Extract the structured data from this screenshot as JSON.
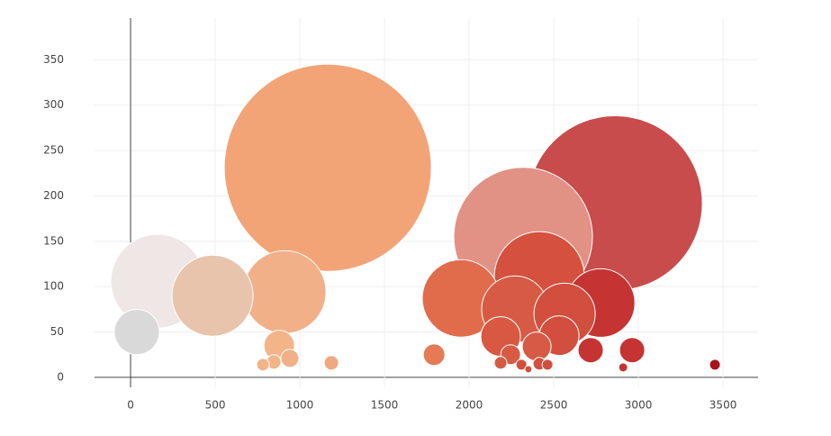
{
  "chart_data": {
    "type": "bubble",
    "x": [
      1165,
      2862,
      2319,
      160,
      2415,
      1952,
      910,
      484,
      2777,
      2271,
      2564,
      37,
      2186,
      2532,
      878,
      2399,
      2718,
      2963,
      1793,
      2245,
      941,
      846,
      1186,
      782,
      2186,
      2415,
      2309,
      2463,
      3452,
      2910,
      2350
    ],
    "y": [
      231,
      192,
      155,
      106,
      111,
      87,
      94,
      90,
      82,
      75,
      70,
      50,
      45,
      46,
      35,
      34,
      30,
      30,
      25,
      25,
      21,
      17,
      16,
      14,
      16,
      15,
      14,
      14,
      14,
      11,
      9
    ],
    "size": [
      115,
      97,
      77,
      52,
      50,
      43,
      46,
      45,
      38,
      37,
      34,
      25,
      22,
      22,
      17,
      16,
      14,
      14,
      12,
      11,
      10,
      8,
      8,
      7,
      7,
      7,
      6,
      6,
      6,
      5,
      4
    ],
    "colors": [
      "#f3a477",
      "#c94c4c",
      "#e29185",
      "#efe7e5",
      "#d5503d",
      "#e06c4c",
      "#f1b088",
      "#e8c4ad",
      "#c53432",
      "#d65a44",
      "#d24e3e",
      "#d9d9d9",
      "#d85842",
      "#d24e3e",
      "#f3b488",
      "#d65a44",
      "#c53432",
      "#c53432",
      "#e57a55",
      "#d65a44",
      "#f1b088",
      "#f3b488",
      "#f1a87e",
      "#f3b488",
      "#d65a44",
      "#d24e3e",
      "#d24e3e",
      "#d24e3e",
      "#a8131e",
      "#c53432",
      "#d24e3e"
    ],
    "xlim": [
      -213,
      3707
    ],
    "ylim": [
      -11,
      396
    ],
    "xticks": [
      0,
      500,
      1000,
      1500,
      2000,
      2500,
      3000,
      3500
    ],
    "yticks": [
      0,
      50,
      100,
      150,
      200,
      250,
      300,
      350
    ],
    "grid": true
  }
}
